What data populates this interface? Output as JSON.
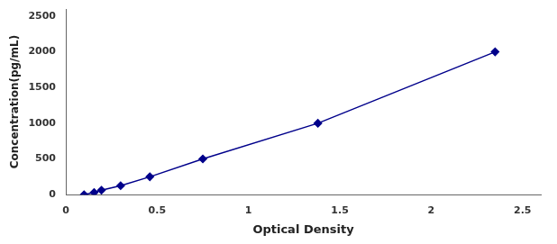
{
  "chart_data": {
    "type": "line",
    "x": [
      0.1,
      0.155,
      0.195,
      0.3,
      0.46,
      0.75,
      1.38,
      2.35
    ],
    "values": [
      0,
      31.25,
      62.5,
      125,
      250,
      500,
      1000,
      2000
    ],
    "color": "#00008B",
    "marker": "diamond",
    "xlabel": "Optical Density",
    "ylabel": "Concentration(pg/mL)",
    "xlim": [
      0,
      2.6
    ],
    "ylim": [
      0,
      2600
    ],
    "xticks": [
      0,
      0.5,
      1,
      1.5,
      2,
      2.5
    ],
    "yticks": [
      0,
      500,
      1000,
      1500,
      2000,
      2500
    ],
    "grid": false
  }
}
